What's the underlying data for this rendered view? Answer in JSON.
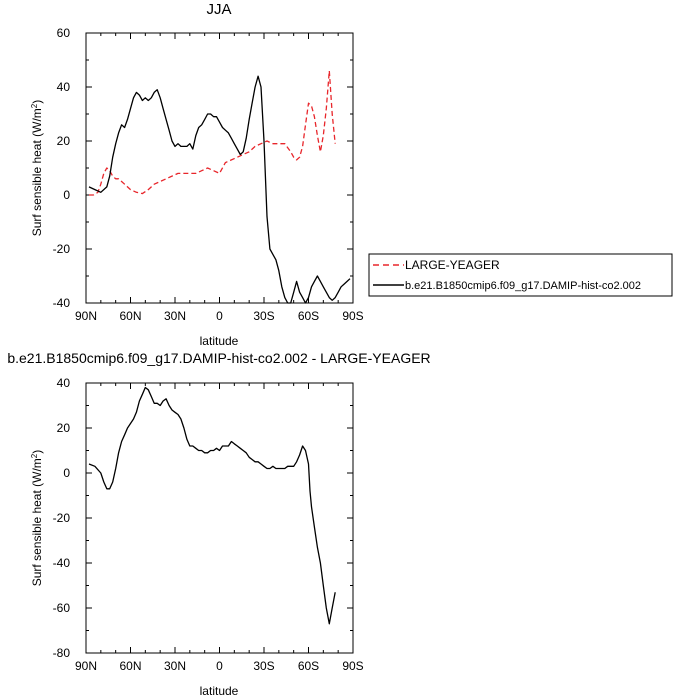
{
  "chart_data": [
    {
      "type": "line",
      "title": "JJA",
      "xlabel": "latitude",
      "ylabel": "Surf sensible heat (W/m²)",
      "ylabel_main": "Surf sensible heat (W/m",
      "ylabel_sup": "2",
      "ylabel_end": ")",
      "xlim": [
        90,
        -90
      ],
      "ylim": [
        -40,
        60
      ],
      "x_ticks": [
        90,
        60,
        30,
        0,
        -30,
        -60,
        -90
      ],
      "x_tick_labels": [
        "90N",
        "60N",
        "30N",
        "0",
        "30S",
        "60S",
        "90S"
      ],
      "y_ticks": [
        -40,
        -20,
        0,
        20,
        40,
        60
      ],
      "y_tick_labels": [
        "-40",
        "-20",
        "0",
        "20",
        "40",
        "60"
      ],
      "grid": false,
      "legend_position": "right",
      "series": [
        {
          "name": "LARGE-YEAGER",
          "color": "#e8262b",
          "style": "dashed",
          "x": [
            88,
            85,
            82,
            80,
            78,
            76,
            74,
            72,
            70,
            68,
            66,
            64,
            62,
            60,
            56,
            52,
            48,
            44,
            40,
            36,
            32,
            28,
            24,
            20,
            16,
            12,
            8,
            4,
            0,
            -4,
            -8,
            -12,
            -16,
            -20,
            -24,
            -28,
            -32,
            -36,
            -40,
            -44,
            -48,
            -50,
            -52,
            -54,
            -56,
            -58,
            -60,
            -62,
            -64,
            -66,
            -68,
            -70,
            -72,
            -74,
            -76,
            -78
          ],
          "y": [
            0,
            0,
            1,
            4,
            8,
            10,
            9,
            7,
            6,
            6,
            5,
            4,
            3,
            2,
            1,
            0.5,
            2,
            4,
            5,
            6,
            7,
            8,
            8,
            8,
            8,
            9,
            10,
            9,
            8,
            12,
            13,
            14,
            15,
            16,
            18,
            19,
            20,
            19,
            19,
            19,
            16,
            14,
            13,
            14,
            18,
            26,
            34,
            33,
            29,
            22,
            16,
            22,
            32,
            46,
            30,
            19
          ]
        },
        {
          "name": "b.e21.B1850cmip6.f09_g17.DAMIP-hist-co2.002",
          "color": "#000000",
          "style": "solid",
          "x": [
            88,
            84,
            80,
            76,
            74,
            72,
            70,
            68,
            66,
            64,
            62,
            60,
            58,
            56,
            54,
            52,
            50,
            48,
            46,
            44,
            42,
            40,
            38,
            36,
            34,
            32,
            30,
            28,
            26,
            24,
            22,
            20,
            18,
            16,
            14,
            12,
            10,
            8,
            6,
            4,
            2,
            0,
            -2,
            -4,
            -6,
            -8,
            -10,
            -12,
            -14,
            -16,
            -18,
            -20,
            -22,
            -24,
            -26,
            -28,
            -30,
            -32,
            -34,
            -36,
            -38,
            -40,
            -42,
            -44,
            -46,
            -48,
            -50,
            -52,
            -54,
            -56,
            -58,
            -60,
            -61,
            -62,
            -64,
            -66,
            -68,
            -70,
            -72,
            -74,
            -76,
            -78,
            -80,
            -82,
            -84,
            -86,
            -88
          ],
          "y": [
            3,
            2,
            1,
            3,
            7,
            14,
            19,
            23,
            26,
            25,
            28,
            32,
            36,
            38,
            37,
            35,
            36,
            35,
            36,
            38,
            39,
            36,
            32,
            28,
            24,
            20,
            18,
            19,
            18,
            18,
            18,
            19,
            17,
            22,
            25,
            26,
            28,
            30,
            30,
            29,
            29,
            27,
            25,
            24,
            23,
            21,
            19,
            17,
            15,
            16,
            21,
            28,
            34,
            40,
            44,
            40,
            20,
            -8,
            -20,
            -22,
            -24,
            -28,
            -34,
            -38,
            -40,
            -40,
            -36,
            -32,
            -36,
            -38,
            -40,
            -38,
            -36,
            -34,
            -32,
            -30,
            -32,
            -34,
            -36,
            -38,
            -39,
            -38,
            -36,
            -34,
            -33,
            -32,
            -31
          ],
          "x_fix": true
        }
      ]
    },
    {
      "type": "line",
      "title": "b.e21.B1850cmip6.f09_g17.DAMIP-hist-co2.002 - LARGE-YEAGER",
      "xlabel": "latitude",
      "ylabel": "Surf sensible heat (W/m²)",
      "ylabel_main": "Surf sensible heat (W/m",
      "ylabel_sup": "2",
      "ylabel_end": ")",
      "xlim": [
        90,
        -90
      ],
      "ylim": [
        -80,
        40
      ],
      "x_ticks": [
        90,
        60,
        30,
        0,
        -30,
        -60,
        -90
      ],
      "x_tick_labels": [
        "90N",
        "60N",
        "30N",
        "0",
        "30S",
        "60S",
        "90S"
      ],
      "y_ticks": [
        -80,
        -60,
        -40,
        -20,
        0,
        20,
        40
      ],
      "y_tick_labels": [
        "-80",
        "-60",
        "-40",
        "-20",
        "0",
        "20",
        "40"
      ],
      "grid": false,
      "series": [
        {
          "color": "#000000",
          "style": "solid",
          "x": [
            88,
            84,
            80,
            78,
            76,
            74,
            72,
            70,
            68,
            66,
            64,
            62,
            60,
            58,
            56,
            54,
            52,
            50,
            48,
            46,
            44,
            42,
            40,
            38,
            36,
            34,
            32,
            30,
            28,
            26,
            24,
            22,
            20,
            18,
            16,
            14,
            12,
            10,
            8,
            6,
            4,
            2,
            0,
            -2,
            -4,
            -6,
            -8,
            -10,
            -12,
            -14,
            -16,
            -18,
            -20,
            -22,
            -24,
            -26,
            -28,
            -30,
            -32,
            -34,
            -36,
            -38,
            -40,
            -42,
            -44,
            -46,
            -48,
            -50,
            -52,
            -54,
            -56,
            -58,
            -60,
            -61,
            -62,
            -64,
            -66,
            -68,
            -70,
            -72,
            -74,
            -76,
            -78
          ],
          "y": [
            4,
            3,
            0,
            -4,
            -7,
            -7,
            -4,
            2,
            9,
            14,
            17,
            20,
            22,
            24,
            27,
            32,
            35,
            38,
            37,
            34,
            31,
            31,
            30,
            32,
            33,
            30,
            28,
            27,
            26,
            24,
            20,
            15,
            12,
            12,
            11,
            10,
            10,
            9,
            9,
            10,
            10,
            11,
            10,
            12,
            12,
            12,
            14,
            13,
            12,
            11,
            10,
            9,
            7,
            6,
            5,
            5,
            4,
            3,
            2,
            2,
            3,
            2,
            2,
            2,
            2,
            3,
            3,
            3,
            5,
            8,
            12,
            10,
            4,
            -8,
            -15,
            -24,
            -33,
            -40,
            -50,
            -60,
            -67,
            -60,
            -53
          ]
        }
      ]
    }
  ]
}
